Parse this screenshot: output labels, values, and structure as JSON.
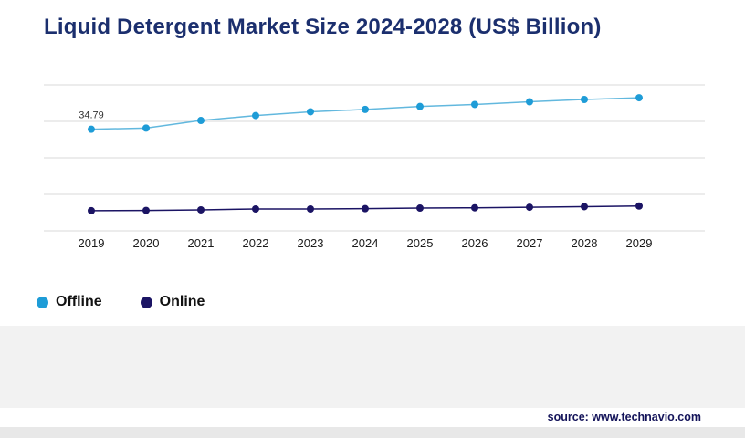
{
  "title": "Liquid Detergent Market Size 2024-2028 (US$ Billion)",
  "source": "source: www.technavio.com",
  "colors": {
    "title": "#1b2f6e",
    "grid": "#d9d9d9",
    "offline": "#1e9cd7",
    "offline_line": "#62b8de",
    "online": "#1b1464"
  },
  "legend": [
    {
      "label": "Offline",
      "color": "#1e9cd7"
    },
    {
      "label": "Online",
      "color": "#1b1464"
    }
  ],
  "chart_data": {
    "type": "line",
    "title": "Liquid Detergent Market Size 2024-2028 (US$ Billion)",
    "categories": [
      "2019",
      "2020",
      "2021",
      "2022",
      "2023",
      "2024",
      "2025",
      "2026",
      "2027",
      "2028",
      "2029"
    ],
    "series": [
      {
        "name": "Offline",
        "color": "#1e9cd7",
        "line_color": "#62b8de",
        "values": [
          34.79,
          35.2,
          37.8,
          39.5,
          40.8,
          41.6,
          42.6,
          43.3,
          44.2,
          45.0,
          45.6
        ],
        "first_point_label": "34.79"
      },
      {
        "name": "Online",
        "color": "#1b1464",
        "line_color": "#1b1464",
        "values": [
          6.9,
          7.0,
          7.2,
          7.5,
          7.5,
          7.6,
          7.8,
          7.9,
          8.1,
          8.3,
          8.5
        ]
      }
    ],
    "ylim": [
      0,
      50
    ],
    "gridlines": 5,
    "grid": true,
    "y_axis_labels_visible": false,
    "legend_position": "bottom-left"
  }
}
